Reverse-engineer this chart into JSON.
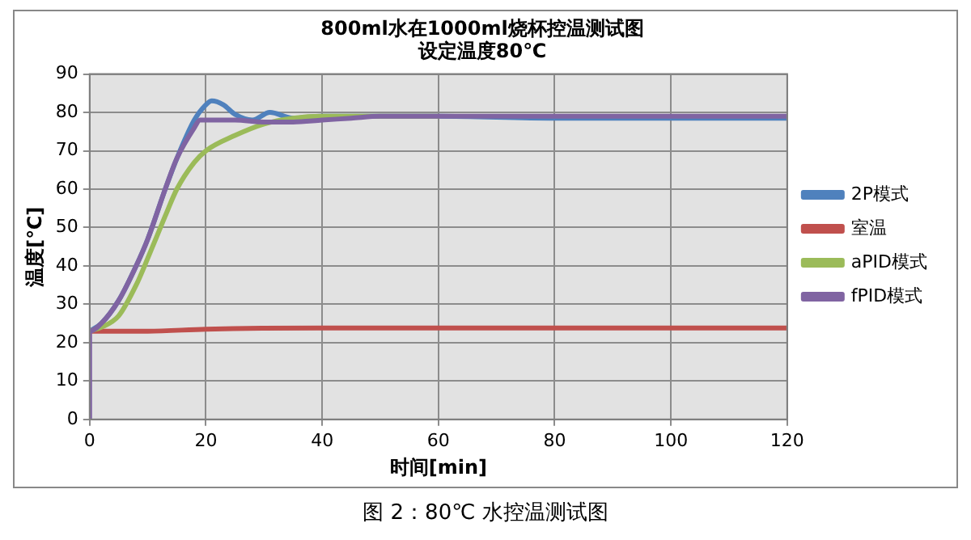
{
  "chart_data": {
    "type": "line",
    "title": "800ml水在1000ml烧杯控温测试图",
    "subtitle": "设定温度80℃",
    "xlabel": "时间[min]",
    "ylabel": "温度[℃]",
    "annotations": [
      "图 2：80℃ 水控温测试图"
    ],
    "xlim": [
      0,
      120
    ],
    "xticks": [
      0,
      20,
      40,
      60,
      80,
      100,
      120
    ],
    "ylim": [
      0,
      90
    ],
    "yticks": [
      0,
      10,
      20,
      30,
      40,
      50,
      60,
      70,
      80,
      90
    ],
    "grid": true,
    "legend": "right",
    "marker": "none",
    "line_style": "solid",
    "series": [
      {
        "name": "2P模式",
        "color": "#4f81bd",
        "x": [
          0,
          2,
          5,
          8,
          10,
          13,
          15,
          18,
          20,
          21,
          23,
          25,
          28,
          31,
          35,
          40,
          50,
          60,
          80,
          100,
          120
        ],
        "values": [
          23,
          25,
          31,
          40,
          47,
          60,
          68,
          78,
          82,
          83,
          82,
          79.5,
          78,
          80,
          78.5,
          79,
          79,
          79,
          78.5,
          78.5,
          78.5
        ]
      },
      {
        "name": "室温",
        "color": "#c0504d",
        "x": [
          0,
          10,
          20,
          40,
          60,
          80,
          100,
          120
        ],
        "values": [
          23,
          23,
          23.5,
          23.8,
          23.8,
          23.8,
          23.8,
          23.8
        ]
      },
      {
        "name": "aPID模式",
        "color": "#9bbb59",
        "x": [
          0,
          2,
          5,
          8,
          10,
          13,
          15,
          18,
          20,
          25,
          30,
          35,
          40,
          50,
          60
        ],
        "values": [
          23,
          24,
          27,
          35,
          42,
          53,
          60,
          67,
          70,
          74,
          77,
          78.5,
          79,
          79,
          79
        ]
      },
      {
        "name": "fPID模式",
        "color": "#8064a2",
        "x": [
          0,
          0,
          2,
          5,
          8,
          10,
          13,
          15,
          18,
          19,
          20,
          25,
          30,
          35,
          40,
          45,
          50,
          60,
          80,
          100,
          120
        ],
        "values": [
          0,
          23,
          25,
          31,
          40,
          47,
          60,
          68,
          76,
          78,
          78,
          78,
          77.5,
          77.5,
          78,
          78.5,
          79,
          79,
          79,
          79,
          79
        ]
      }
    ]
  }
}
